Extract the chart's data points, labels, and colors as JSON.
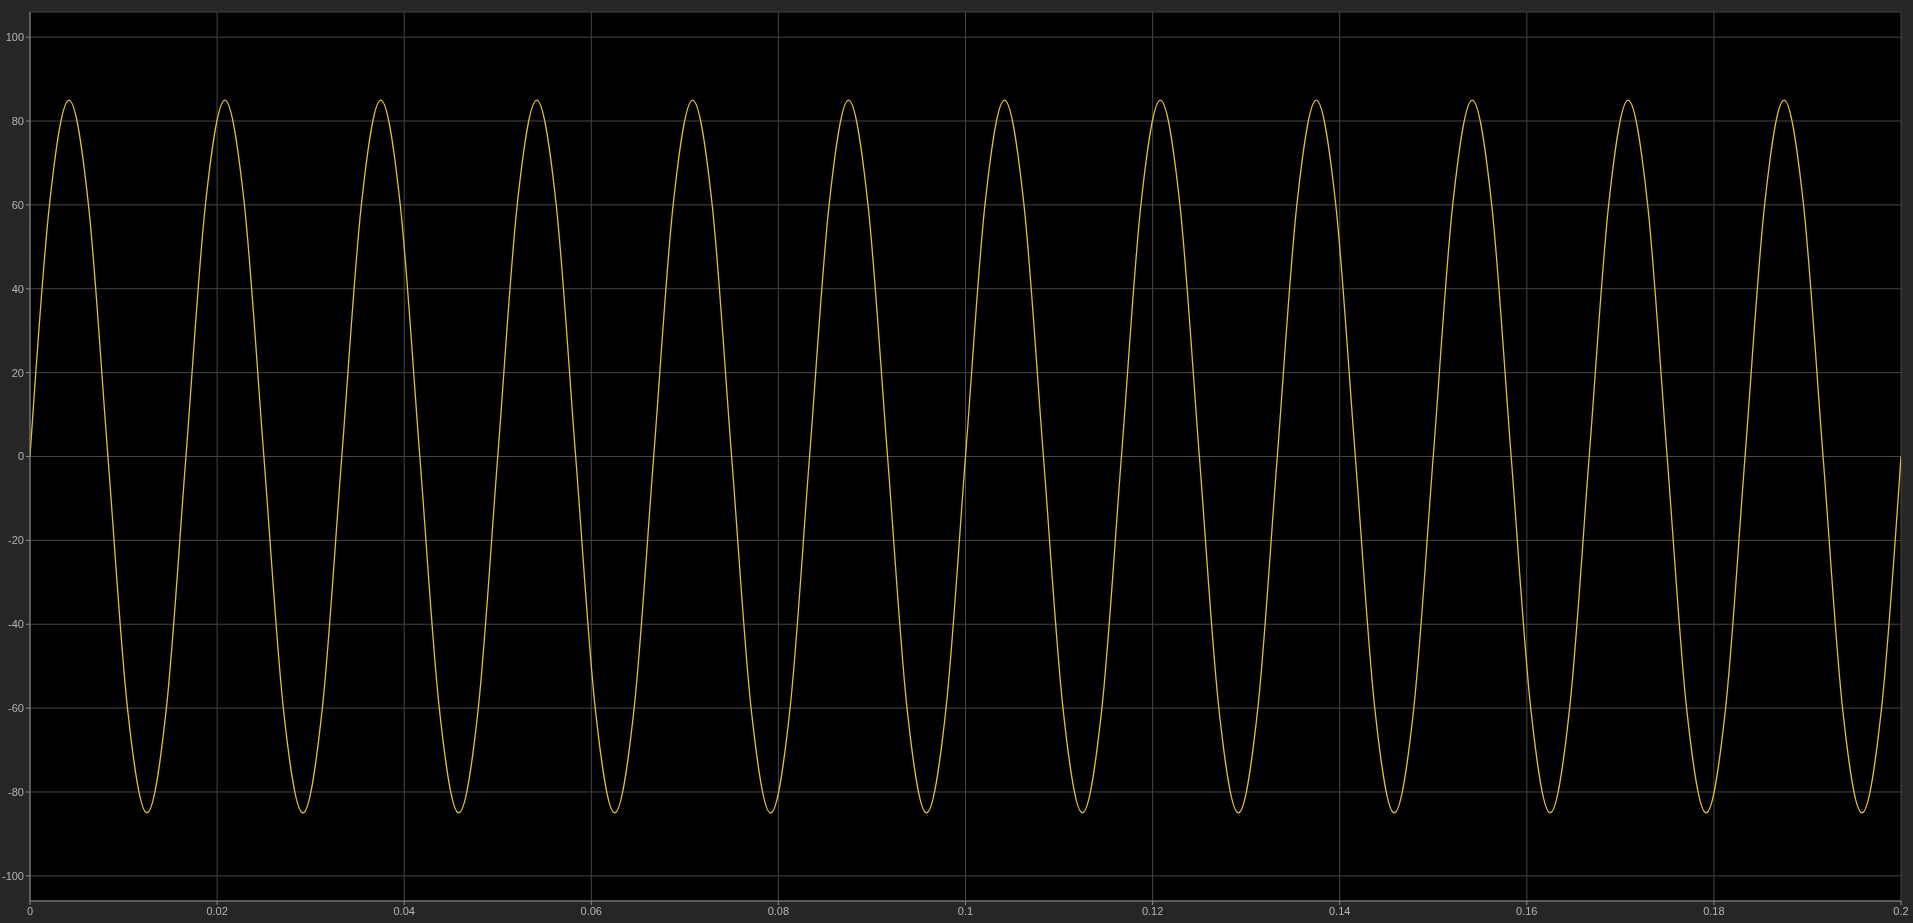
{
  "chart_data": {
    "type": "line",
    "x": [
      0,
      0.00208,
      0.00417,
      0.00625,
      0.00833,
      0.01042,
      0.0125,
      0.01458,
      0.01667,
      0.01875,
      0.02083,
      0.02292,
      0.025,
      0.02708,
      0.02917,
      0.03125,
      0.03333,
      0.03542,
      0.0375,
      0.03958,
      0.04167,
      0.04375,
      0.04583,
      0.04792,
      0.05,
      0.05208,
      0.05417,
      0.05625,
      0.05833,
      0.06042,
      0.0625,
      0.06458,
      0.06667,
      0.06875,
      0.07083,
      0.07292,
      0.075,
      0.07708,
      0.07917,
      0.08125,
      0.08333,
      0.08542,
      0.0875,
      0.08958,
      0.09167,
      0.09375,
      0.09583,
      0.09792,
      0.1,
      0.10208,
      0.10417,
      0.10625,
      0.10833,
      0.11042,
      0.1125,
      0.11458,
      0.11667,
      0.11875,
      0.12083,
      0.12292,
      0.125,
      0.12708,
      0.12917,
      0.13125,
      0.13333,
      0.13542,
      0.1375,
      0.13958,
      0.14167,
      0.14375,
      0.14583,
      0.14792,
      0.15,
      0.15208,
      0.15417,
      0.15625,
      0.15833,
      0.16042,
      0.1625,
      0.16458,
      0.16667,
      0.16875,
      0.17083,
      0.17292,
      0.175,
      0.17708,
      0.17917,
      0.18125,
      0.18333,
      0.18542,
      0.1875,
      0.18958,
      0.19167,
      0.19375,
      0.19583,
      0.19792,
      0.2
    ],
    "series": [
      {
        "color": "#dcc235",
        "values": [
          0,
          60,
          85,
          60,
          0,
          -60,
          -85,
          -60,
          0,
          60,
          85,
          60,
          0,
          -60,
          -85,
          -60,
          0,
          60,
          85,
          60,
          0,
          -60,
          -85,
          -60,
          0,
          60,
          85,
          60,
          0,
          -60,
          -85,
          -60,
          0,
          60,
          85,
          60,
          0,
          -60,
          -85,
          -60,
          0,
          60,
          85,
          60,
          0,
          -60,
          -85,
          -60,
          0,
          60,
          85,
          60,
          0,
          -60,
          -85,
          -60,
          0,
          60,
          85,
          60,
          0,
          -60,
          -85,
          -60,
          0,
          60,
          85,
          60,
          0,
          -60,
          -85,
          -60,
          0,
          60,
          85,
          60,
          0,
          -60,
          -85,
          -60,
          0,
          60,
          85,
          60,
          0,
          -60,
          -85,
          -60,
          0,
          60,
          85,
          60,
          0,
          -60,
          -85,
          -60,
          0
        ]
      }
    ],
    "xlim": [
      0,
      0.2
    ],
    "xticks": [
      0,
      0.02,
      0.04,
      0.06,
      0.08,
      0.1,
      0.12,
      0.14,
      0.16,
      0.18,
      0.2
    ],
    "ylim": [
      -106,
      106
    ],
    "yticks": [
      -100,
      -80,
      -60,
      -40,
      -20,
      0,
      20,
      40,
      60,
      80,
      100
    ],
    "grid": true
  }
}
